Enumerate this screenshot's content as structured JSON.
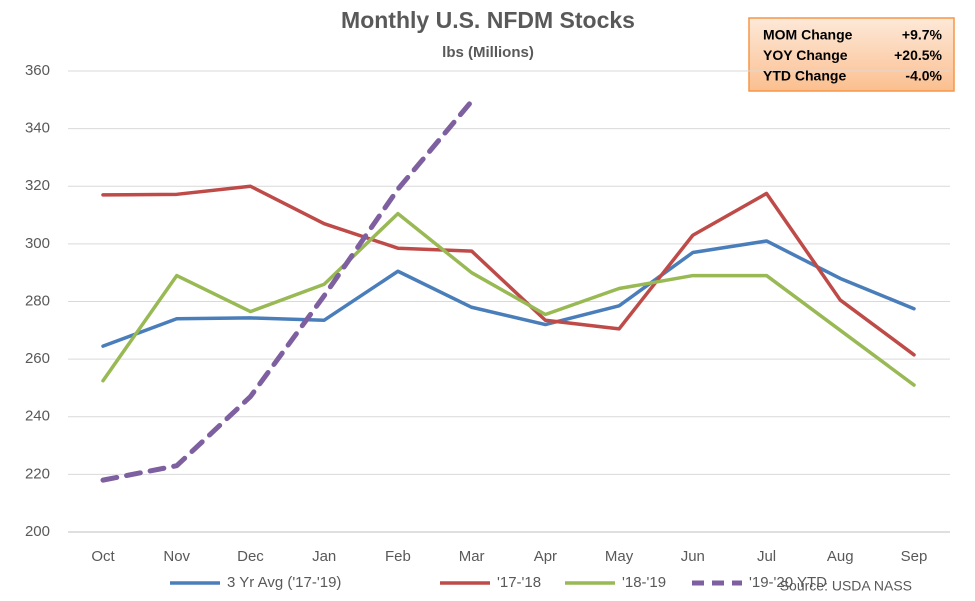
{
  "chart_data": {
    "type": "line",
    "title": "Monthly U.S. NFDM Stocks",
    "subtitle": "lbs (Millions)",
    "categories": [
      "Oct",
      "Nov",
      "Dec",
      "Jan",
      "Feb",
      "Mar",
      "Apr",
      "May",
      "Jun",
      "Jul",
      "Aug",
      "Sep"
    ],
    "series": [
      {
        "name": "3 Yr Avg ('17-'19)",
        "color": "#4a7ebb",
        "dashed": false,
        "values": [
          264.5,
          274,
          274.3,
          273.5,
          290.5,
          278,
          272,
          278.5,
          297,
          301,
          288,
          277.5
        ]
      },
      {
        "name": "'17-'18",
        "color": "#be4b48",
        "dashed": false,
        "values": [
          317,
          317.2,
          320,
          307,
          298.5,
          297.5,
          273.5,
          270.5,
          303,
          317.5,
          280.5,
          261.5
        ]
      },
      {
        "name": "'18-'19",
        "color": "#98b954",
        "dashed": false,
        "values": [
          252.5,
          289,
          276.5,
          286,
          310.5,
          290,
          275.5,
          284.5,
          289,
          289,
          270,
          251
        ]
      },
      {
        "name": "'19-'20 YTD",
        "color": "#7e5fa0",
        "dashed": true,
        "values": [
          218,
          223,
          247,
          282,
          319,
          349.5,
          null,
          null,
          null,
          null,
          null,
          null
        ]
      }
    ],
    "ylim": [
      200,
      360
    ],
    "yticks": [
      200,
      220,
      240,
      260,
      280,
      300,
      320,
      340,
      360
    ],
    "grid": true,
    "legend": "bottom",
    "annotations": [
      {
        "label": "MOM Change",
        "value": "+9.7%"
      },
      {
        "label": "YOY Change",
        "value": "+20.5%"
      },
      {
        "label": "YTD Change",
        "value": "-4.0%"
      }
    ],
    "source": "Source: USDA NASS"
  }
}
